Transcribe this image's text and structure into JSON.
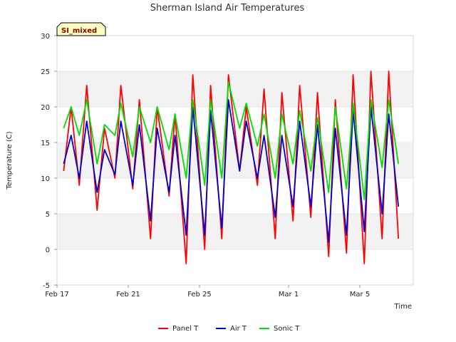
{
  "chart_data": {
    "type": "line",
    "title": "Sherman Island Air Temperatures",
    "badge": "SI_mixed",
    "xlabel": "Time",
    "ylabel": "Temperature (C)",
    "xlim": [
      "2024-02-17",
      "2024-03-08"
    ],
    "ylim": [
      -5,
      30
    ],
    "yticks": [
      -5,
      0,
      5,
      10,
      15,
      20,
      25,
      30
    ],
    "xticks": [
      {
        "date": "2024-02-17",
        "label": "Feb 17"
      },
      {
        "date": "2024-02-21",
        "label": "Feb 21"
      },
      {
        "date": "2024-02-25",
        "label": "Feb 25"
      },
      {
        "date": "2024-03-01",
        "label": "Mar 1"
      },
      {
        "date": "2024-03-05",
        "label": "Mar 5"
      }
    ],
    "grid": "horizontal bands",
    "legend_position": "bottom",
    "series": [
      {
        "name": "Panel T",
        "color": "#ff0000",
        "x": [
          "2024-02-17 09:00",
          "2024-02-17 19:00",
          "2024-02-18 06:00",
          "2024-02-18 16:00",
          "2024-02-19 06:00",
          "2024-02-19 16:00",
          "2024-02-20 06:00",
          "2024-02-20 14:00",
          "2024-02-21 06:00",
          "2024-02-21 15:00",
          "2024-02-22 06:00",
          "2024-02-22 15:00",
          "2024-02-23 07:00",
          "2024-02-23 15:00",
          "2024-02-24 06:00",
          "2024-02-24 15:00",
          "2024-02-25 07:00",
          "2024-02-25 15:00",
          "2024-02-26 06:00",
          "2024-02-26 15:00",
          "2024-02-27 06:00",
          "2024-02-27 15:00",
          "2024-02-28 06:00",
          "2024-02-28 15:00",
          "2024-02-29 06:00",
          "2024-02-29 15:00",
          "2024-03-01 06:00",
          "2024-03-01 15:00",
          "2024-03-02 06:00",
          "2024-03-02 15:00",
          "2024-03-03 06:00",
          "2024-03-03 15:00",
          "2024-03-04 06:00",
          "2024-03-04 15:00",
          "2024-03-05 06:00",
          "2024-03-05 15:00",
          "2024-03-06 06:00",
          "2024-03-06 15:00",
          "2024-03-07 04:00"
        ],
        "values": [
          11,
          20,
          9,
          23,
          5.5,
          17,
          10,
          23,
          8.5,
          21,
          1.5,
          20,
          7.5,
          19,
          -2,
          24.5,
          0,
          23,
          1.5,
          24.5,
          11,
          20,
          9,
          22.5,
          1.5,
          22,
          4,
          23,
          4.5,
          22,
          -1,
          21,
          -0.5,
          24.5,
          -2,
          25,
          1.5,
          25,
          1.5
        ]
      },
      {
        "name": "Air T",
        "color": "#0000cc",
        "x": [
          "2024-02-17 09:00",
          "2024-02-17 19:00",
          "2024-02-18 06:00",
          "2024-02-18 16:00",
          "2024-02-19 06:00",
          "2024-02-19 16:00",
          "2024-02-20 06:00",
          "2024-02-20 14:00",
          "2024-02-21 06:00",
          "2024-02-21 15:00",
          "2024-02-22 06:00",
          "2024-02-22 15:00",
          "2024-02-23 07:00",
          "2024-02-23 15:00",
          "2024-02-24 06:00",
          "2024-02-24 15:00",
          "2024-02-25 07:00",
          "2024-02-25 15:00",
          "2024-02-26 06:00",
          "2024-02-26 15:00",
          "2024-02-27 06:00",
          "2024-02-27 15:00",
          "2024-02-28 06:00",
          "2024-02-28 15:00",
          "2024-02-29 06:00",
          "2024-02-29 15:00",
          "2024-03-01 06:00",
          "2024-03-01 15:00",
          "2024-03-02 06:00",
          "2024-03-02 15:00",
          "2024-03-03 06:00",
          "2024-03-03 15:00",
          "2024-03-04 06:00",
          "2024-03-04 15:00",
          "2024-03-05 06:00",
          "2024-03-05 15:00",
          "2024-03-06 06:00",
          "2024-03-06 15:00",
          "2024-03-07 04:00"
        ],
        "values": [
          12,
          16,
          10,
          18,
          8,
          14,
          10.5,
          18,
          9,
          17.5,
          4,
          17,
          8,
          16,
          2,
          20,
          2,
          19.5,
          3,
          21,
          11,
          18,
          10,
          16,
          4.5,
          16,
          6,
          18,
          6,
          17.5,
          1,
          17,
          2,
          19.5,
          2.5,
          20,
          5,
          19,
          6
        ]
      },
      {
        "name": "Sonic T",
        "color": "#00dd00",
        "x": [
          "2024-02-17 09:00",
          "2024-02-17 19:00",
          "2024-02-18 06:00",
          "2024-02-18 16:00",
          "2024-02-19 06:00",
          "2024-02-19 16:00",
          "2024-02-20 06:00",
          "2024-02-20 14:00",
          "2024-02-21 06:00",
          "2024-02-21 15:00",
          "2024-02-22 06:00",
          "2024-02-22 15:00",
          "2024-02-23 07:00",
          "2024-02-23 15:00",
          "2024-02-24 06:00",
          "2024-02-24 15:00",
          "2024-02-25 07:00",
          "2024-02-25 15:00",
          "2024-02-26 06:00",
          "2024-02-26 15:00",
          "2024-02-27 06:00",
          "2024-02-27 15:00",
          "2024-02-28 06:00",
          "2024-02-28 15:00",
          "2024-02-29 06:00",
          "2024-02-29 15:00",
          "2024-03-01 06:00",
          "2024-03-01 15:00",
          "2024-03-02 06:00",
          "2024-03-02 15:00",
          "2024-03-03 06:00",
          "2024-03-03 15:00",
          "2024-03-04 06:00",
          "2024-03-04 15:00",
          "2024-03-05 06:00",
          "2024-03-05 15:00",
          "2024-03-06 06:00",
          "2024-03-06 15:00",
          "2024-03-07 04:00"
        ],
        "values": [
          17,
          20,
          16,
          21,
          12,
          17.5,
          16,
          20.5,
          13,
          20,
          15,
          20,
          14,
          19,
          10,
          21,
          9,
          21,
          10,
          23.5,
          17,
          20.5,
          14.5,
          19,
          10,
          19,
          12,
          19.5,
          11,
          18.5,
          8,
          20,
          8.5,
          20.5,
          7,
          21,
          11.5,
          21,
          12
        ]
      }
    ]
  }
}
